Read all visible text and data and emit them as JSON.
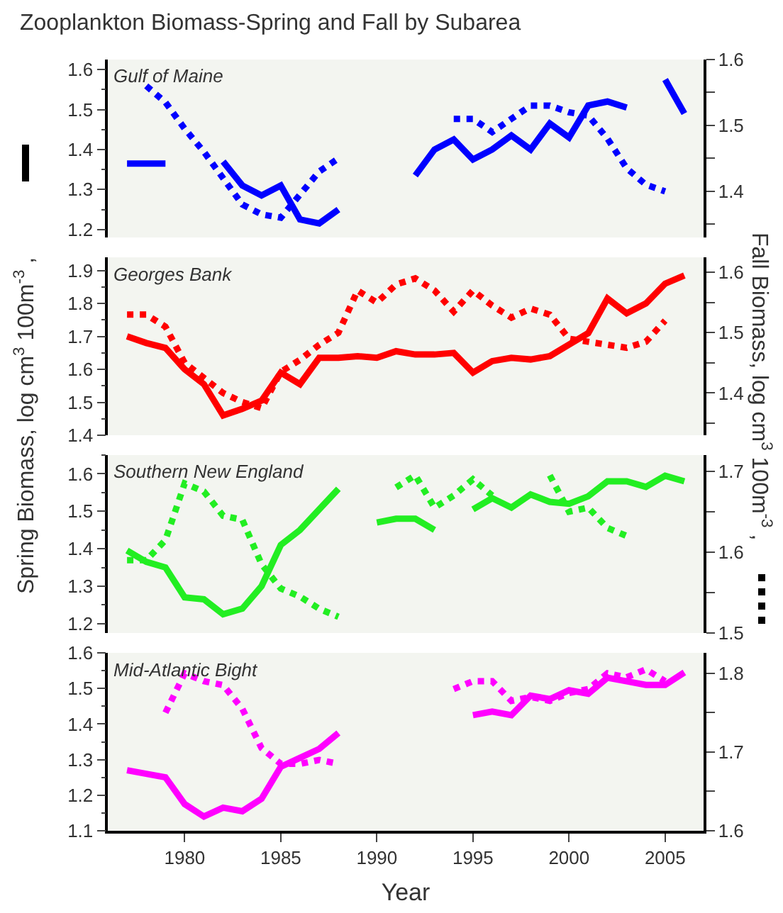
{
  "chart_data": [
    {
      "type": "line",
      "title": "Zooplankton Biomass-Spring and Fall by Subarea",
      "ylabel": "Spring Biomass, log cm$^{3}$ 100m$^{-3}$ ,",
      "y2label": "Fall Biomass, log cm$^{3}$ 100m$^{-3}$ ,",
      "annotations": [
        "Gulf of Maine"
      ],
      "x": [
        1977,
        1978,
        1979,
        1980,
        1981,
        1982,
        1983,
        1984,
        1985,
        1986,
        1987,
        1988,
        1989,
        1990,
        1991,
        1992,
        1993,
        1994,
        1995,
        1996,
        1997,
        1998,
        1999,
        2000,
        2001,
        2002,
        2003,
        2004,
        2005,
        2006
      ],
      "xlim": [
        1976,
        2007
      ],
      "tick_labels": [
        "y",
        "y2"
      ],
      "ylim": [
        1.18,
        1.625
      ],
      "yticks": [
        1.2,
        1.3,
        1.4,
        1.5,
        1.6
      ],
      "y2lim": [
        1.33,
        1.6
      ],
      "y2ticks": [
        1.4,
        1.5,
        1.6
      ],
      "series": [
        {
          "color": "#0000ff",
          "line_style": "solid",
          "values": [
            1.365,
            1.365,
            1.365,
            null,
            null,
            1.37,
            1.31,
            1.285,
            1.31,
            1.225,
            1.215,
            1.25,
            null,
            null,
            null,
            1.335,
            1.4,
            1.425,
            1.375,
            1.4,
            1.435,
            1.4,
            1.465,
            1.43,
            1.51,
            1.52,
            1.505,
            null,
            1.575,
            1.49
          ]
        },
        {
          "color": "#0000ff",
          "line_style": "dotted",
          "axis": "y2",
          "values": [
            null,
            1.56,
            1.535,
            1.495,
            1.46,
            1.42,
            1.38,
            1.365,
            1.36,
            1.395,
            1.43,
            1.45,
            null,
            null,
            null,
            null,
            null,
            1.51,
            1.51,
            1.49,
            1.51,
            1.53,
            1.53,
            1.52,
            1.515,
            1.48,
            1.435,
            1.41,
            1.4,
            null
          ]
        }
      ]
    },
    {
      "type": "line",
      "annotations": [
        "Georges Bank"
      ],
      "x": [
        1977,
        1978,
        1979,
        1980,
        1981,
        1982,
        1983,
        1984,
        1985,
        1986,
        1987,
        1988,
        1989,
        1990,
        1991,
        1992,
        1993,
        1994,
        1995,
        1996,
        1997,
        1998,
        1999,
        2000,
        2001,
        2002,
        2003,
        2004,
        2005,
        2006
      ],
      "xlim": [
        1976,
        2007
      ],
      "tick_labels": [
        "y",
        "y2"
      ],
      "ylim": [
        1.4,
        1.94
      ],
      "yticks": [
        1.4,
        1.5,
        1.6,
        1.7,
        1.8,
        1.9
      ],
      "y2lim": [
        1.33,
        1.625
      ],
      "y2ticks": [
        1.4,
        1.5,
        1.6
      ],
      "series": [
        {
          "color": "#ff0000",
          "line_style": "solid",
          "values": [
            1.7,
            1.68,
            1.665,
            1.6,
            1.555,
            1.46,
            1.48,
            1.505,
            1.59,
            1.555,
            1.635,
            1.635,
            1.64,
            1.635,
            1.655,
            1.645,
            1.645,
            1.65,
            1.59,
            1.625,
            1.635,
            1.63,
            1.64,
            1.675,
            1.71,
            1.815,
            1.77,
            1.8,
            1.86,
            1.885
          ]
        },
        {
          "color": "#ff0000",
          "line_style": "dotted",
          "axis": "y2",
          "values": [
            1.53,
            1.53,
            1.51,
            1.45,
            1.425,
            1.4,
            1.385,
            1.375,
            1.435,
            1.455,
            1.48,
            1.5,
            1.57,
            1.55,
            1.58,
            1.59,
            1.57,
            1.535,
            1.57,
            1.545,
            1.525,
            1.54,
            1.53,
            1.49,
            1.485,
            1.48,
            1.475,
            1.485,
            1.52,
            null
          ]
        }
      ]
    },
    {
      "type": "line",
      "annotations": [
        "Southern New England"
      ],
      "x": [
        1977,
        1978,
        1979,
        1980,
        1981,
        1982,
        1983,
        1984,
        1985,
        1986,
        1987,
        1988,
        1989,
        1990,
        1991,
        1992,
        1993,
        1994,
        1995,
        1996,
        1997,
        1998,
        1999,
        2000,
        2001,
        2002,
        2003,
        2004,
        2005,
        2006
      ],
      "xlim": [
        1976,
        2007
      ],
      "tick_labels": [
        "y",
        "y2"
      ],
      "ylim": [
        1.175,
        1.65
      ],
      "yticks": [
        1.2,
        1.3,
        1.4,
        1.5,
        1.6
      ],
      "y2lim": [
        1.5,
        1.72
      ],
      "y2ticks": [
        1.5,
        1.6,
        1.7
      ],
      "series": [
        {
          "color": "#22ee22",
          "line_style": "solid",
          "values": [
            1.395,
            1.365,
            1.35,
            1.27,
            1.265,
            1.225,
            1.24,
            1.3,
            1.41,
            1.45,
            1.505,
            1.56,
            null,
            1.47,
            1.48,
            1.48,
            1.45,
            null,
            1.505,
            1.535,
            1.51,
            1.545,
            1.525,
            1.52,
            1.54,
            1.58,
            1.58,
            1.565,
            1.595,
            1.58
          ]
        },
        {
          "color": "#22ee22",
          "line_style": "dotted",
          "axis": "y2",
          "values": [
            1.59,
            1.59,
            1.615,
            1.685,
            1.675,
            1.645,
            1.64,
            1.585,
            1.555,
            1.545,
            1.53,
            1.52,
            null,
            null,
            1.68,
            1.695,
            1.655,
            1.67,
            1.69,
            1.67,
            null,
            null,
            1.695,
            1.65,
            1.655,
            1.63,
            1.62,
            null,
            null,
            null
          ]
        }
      ]
    },
    {
      "type": "line",
      "annotations": [
        "Mid-Atlantic Bight"
      ],
      "xlabel": "Year",
      "x": [
        1977,
        1978,
        1979,
        1980,
        1981,
        1982,
        1983,
        1984,
        1985,
        1986,
        1987,
        1988,
        1989,
        1990,
        1991,
        1992,
        1993,
        1994,
        1995,
        1996,
        1997,
        1998,
        1999,
        2000,
        2001,
        2002,
        2003,
        2004,
        2005,
        2006
      ],
      "xlim": [
        1976,
        2007
      ],
      "xticks": [
        1980,
        1985,
        1990,
        1995,
        2000,
        2005
      ],
      "ylim": [
        1.1,
        1.6
      ],
      "yticks": [
        1.1,
        1.2,
        1.3,
        1.4,
        1.5,
        1.6
      ],
      "y2lim": [
        1.6,
        1.826
      ],
      "y2ticks": [
        1.6,
        1.7,
        1.8
      ],
      "series": [
        {
          "color": "#ff00ff",
          "line_style": "solid",
          "values": [
            1.27,
            1.26,
            1.25,
            1.175,
            1.14,
            1.165,
            1.155,
            1.19,
            1.28,
            1.305,
            1.33,
            1.375,
            null,
            null,
            null,
            null,
            null,
            null,
            1.425,
            1.435,
            1.425,
            1.48,
            1.47,
            1.495,
            1.485,
            1.53,
            1.52,
            1.51,
            1.51,
            1.545
          ]
        },
        {
          "color": "#ff00ff",
          "line_style": "dotted",
          "axis": "y2",
          "values": [
            null,
            null,
            1.75,
            1.8,
            1.79,
            1.785,
            1.755,
            1.705,
            1.685,
            1.685,
            1.69,
            1.685,
            null,
            null,
            null,
            null,
            null,
            1.78,
            1.79,
            1.79,
            1.765,
            1.77,
            1.765,
            1.775,
            1.78,
            1.8,
            1.795,
            1.805,
            1.79,
            null
          ]
        }
      ]
    }
  ]
}
